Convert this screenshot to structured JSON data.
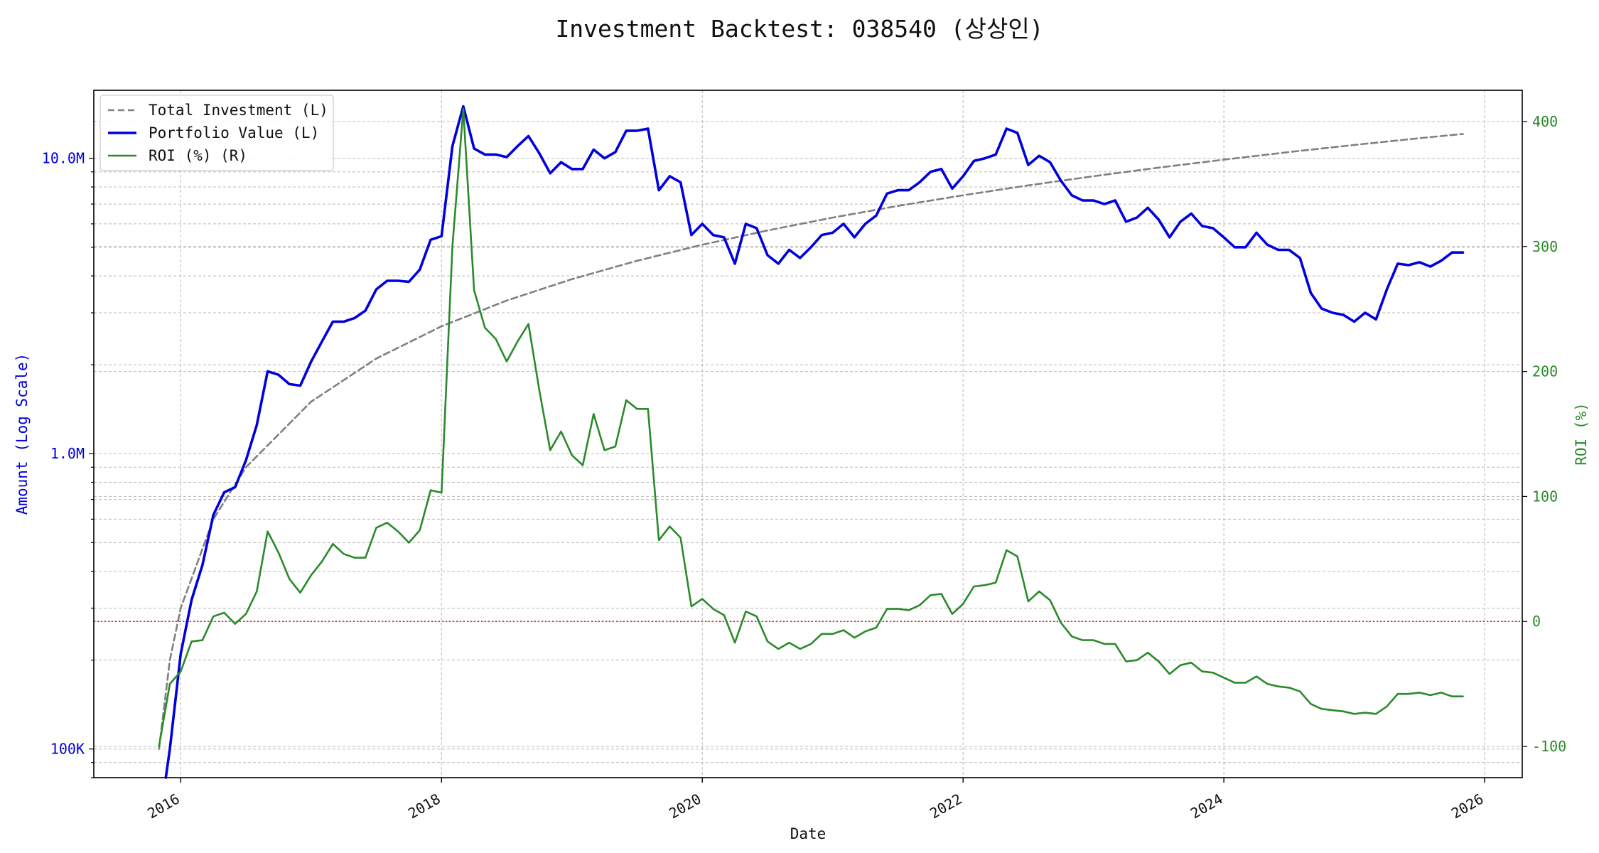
{
  "title": "Investment Backtest: 038540 (상상인)",
  "colors": {
    "investment": "#808080",
    "portfolio": "#0000dd",
    "roi": "#2a8a2a",
    "zero_line": "#dd2222",
    "grid": "#b8b8b8"
  },
  "chart_data": {
    "type": "line",
    "title": "Investment Backtest: 038540 (상상인)",
    "xlabel": "Date",
    "ylabel_left": "Amount (Log Scale)",
    "ylabel_right": "ROI (%)",
    "x_ticks": [
      "2016",
      "2018",
      "2020",
      "2022",
      "2024",
      "2026"
    ],
    "y_left_ticks": [
      "100K",
      "1.0M",
      "10.0M"
    ],
    "y_right_ticks": [
      "-100",
      "0",
      "100",
      "200",
      "300",
      "400"
    ],
    "y_left_scale": "log",
    "y_left_range": [
      80000,
      17000000
    ],
    "y_right_range": [
      -125,
      425
    ],
    "x_range": [
      "2015-05-01",
      "2026-04-15"
    ],
    "grid": true,
    "legend_position": "top-left",
    "roi_reference_line": 0,
    "legend": [
      "Total Investment (L)",
      "Portfolio Value (L)",
      "ROI (%) (R)"
    ],
    "series": [
      {
        "name": "Total Investment (L)",
        "axis": "left",
        "style": "dashed",
        "x": [
          "2015-11-01",
          "2015-12-01",
          "2016-01-01",
          "2016-04-01",
          "2016-07-01",
          "2017-01-01",
          "2017-07-01",
          "2018-01-01",
          "2018-07-01",
          "2019-01-01",
          "2019-07-01",
          "2020-01-01",
          "2020-07-01",
          "2021-01-01",
          "2021-07-01",
          "2022-01-01",
          "2022-07-01",
          "2023-01-01",
          "2023-07-01",
          "2024-01-01",
          "2024-07-01",
          "2025-01-01",
          "2025-07-01",
          "2025-11-01"
        ],
        "values": [
          100000,
          200000,
          300000,
          600000,
          900000,
          1500000,
          2100000,
          2700000,
          3300000,
          3900000,
          4500000,
          5100000,
          5700000,
          6300000,
          6900000,
          7500000,
          8100000,
          8700000,
          9300000,
          9900000,
          10500000,
          11100000,
          11700000,
          12100000
        ]
      },
      {
        "name": "Portfolio Value (L)",
        "axis": "left",
        "style": "solid",
        "x": [
          "2015-11-20",
          "2015-12-01",
          "2016-01-01",
          "2016-02-01",
          "2016-03-01",
          "2016-04-01",
          "2016-05-01",
          "2016-06-01",
          "2016-07-01",
          "2016-08-01",
          "2016-09-01",
          "2016-10-01",
          "2016-11-01",
          "2016-12-01",
          "2017-01-01",
          "2017-02-01",
          "2017-03-01",
          "2017-04-01",
          "2017-05-01",
          "2017-06-01",
          "2017-07-01",
          "2017-08-01",
          "2017-09-01",
          "2017-10-01",
          "2017-11-01",
          "2017-12-01",
          "2018-01-01",
          "2018-02-01",
          "2018-03-01",
          "2018-04-01",
          "2018-05-01",
          "2018-06-01",
          "2018-07-01",
          "2018-08-01",
          "2018-09-01",
          "2018-10-01",
          "2018-11-01",
          "2018-12-01",
          "2019-01-01",
          "2019-02-01",
          "2019-03-01",
          "2019-04-01",
          "2019-05-01",
          "2019-06-01",
          "2019-07-01",
          "2019-08-01",
          "2019-09-01",
          "2019-10-01",
          "2019-11-01",
          "2019-12-01",
          "2020-01-01",
          "2020-02-01",
          "2020-03-01",
          "2020-04-01",
          "2020-05-01",
          "2020-06-01",
          "2020-07-01",
          "2020-08-01",
          "2020-09-01",
          "2020-10-01",
          "2020-11-01",
          "2020-12-01",
          "2021-01-01",
          "2021-02-01",
          "2021-03-01",
          "2021-04-01",
          "2021-05-01",
          "2021-06-01",
          "2021-07-01",
          "2021-08-01",
          "2021-09-01",
          "2021-10-01",
          "2021-11-01",
          "2021-12-01",
          "2022-01-01",
          "2022-02-01",
          "2022-03-01",
          "2022-04-01",
          "2022-05-01",
          "2022-06-01",
          "2022-07-01",
          "2022-08-01",
          "2022-09-01",
          "2022-10-01",
          "2022-11-01",
          "2022-12-01",
          "2023-01-01",
          "2023-02-01",
          "2023-03-01",
          "2023-04-01",
          "2023-05-01",
          "2023-06-01",
          "2023-07-01",
          "2023-08-01",
          "2023-09-01",
          "2023-10-01",
          "2023-11-01",
          "2023-12-01",
          "2024-01-01",
          "2024-02-01",
          "2024-03-01",
          "2024-04-01",
          "2024-05-01",
          "2024-06-01",
          "2024-07-01",
          "2024-08-01",
          "2024-09-01",
          "2024-10-01",
          "2024-11-01",
          "2024-12-01",
          "2025-01-01",
          "2025-02-01",
          "2025-03-01",
          "2025-04-01",
          "2025-05-01",
          "2025-06-01",
          "2025-07-01",
          "2025-08-01",
          "2025-09-01",
          "2025-10-01",
          "2025-11-01"
        ],
        "values": [
          75000,
          100000,
          210000,
          320000,
          420000,
          620000,
          740000,
          770000,
          950000,
          1250000,
          1900000,
          1850000,
          1720000,
          1700000,
          2050000,
          2400000,
          2800000,
          2800000,
          2880000,
          3050000,
          3600000,
          3850000,
          3850000,
          3820000,
          4200000,
          5300000,
          5450000,
          11000000,
          15000000,
          10800000,
          10300000,
          10300000,
          10100000,
          11000000,
          11900000,
          10400000,
          8900000,
          9700000,
          9200000,
          9200000,
          10700000,
          10000000,
          10500000,
          12400000,
          12400000,
          12600000,
          7800000,
          8700000,
          8300000,
          5500000,
          6000000,
          5500000,
          5400000,
          4400000,
          6000000,
          5800000,
          4700000,
          4400000,
          4900000,
          4600000,
          5000000,
          5500000,
          5600000,
          6000000,
          5400000,
          6000000,
          6400000,
          7600000,
          7800000,
          7800000,
          8300000,
          9000000,
          9200000,
          7900000,
          8700000,
          9800000,
          10000000,
          10300000,
          12600000,
          12200000,
          9500000,
          10200000,
          9700000,
          8400000,
          7500000,
          7200000,
          7200000,
          7000000,
          7200000,
          6100000,
          6300000,
          6800000,
          6200000,
          5400000,
          6100000,
          6500000,
          5900000,
          5800000,
          5400000,
          5000000,
          5000000,
          5600000,
          5100000,
          4900000,
          4900000,
          4600000,
          3500000,
          3100000,
          3000000,
          2950000,
          2800000,
          3000000,
          2850000,
          3600000,
          4400000,
          4350000,
          4450000,
          4300000,
          4500000,
          4800000,
          4800000
        ]
      },
      {
        "name": "ROI (%) (R)",
        "axis": "right",
        "style": "solid",
        "x": [
          "2015-11-01",
          "2015-12-01",
          "2016-01-01",
          "2016-02-01",
          "2016-03-01",
          "2016-04-01",
          "2016-05-01",
          "2016-06-01",
          "2016-07-01",
          "2016-08-01",
          "2016-09-01",
          "2016-10-01",
          "2016-11-01",
          "2016-12-01",
          "2017-01-01",
          "2017-02-01",
          "2017-03-01",
          "2017-04-01",
          "2017-05-01",
          "2017-06-01",
          "2017-07-01",
          "2017-08-01",
          "2017-09-01",
          "2017-10-01",
          "2017-11-01",
          "2017-12-01",
          "2018-01-01",
          "2018-02-01",
          "2018-03-01",
          "2018-04-01",
          "2018-05-01",
          "2018-06-01",
          "2018-07-01",
          "2018-08-01",
          "2018-09-01",
          "2018-10-01",
          "2018-11-01",
          "2018-12-01",
          "2019-01-01",
          "2019-02-01",
          "2019-03-01",
          "2019-04-01",
          "2019-05-01",
          "2019-06-01",
          "2019-07-01",
          "2019-08-01",
          "2019-09-01",
          "2019-10-01",
          "2019-11-01",
          "2019-12-01",
          "2020-01-01",
          "2020-02-01",
          "2020-03-01",
          "2020-04-01",
          "2020-05-01",
          "2020-06-01",
          "2020-07-01",
          "2020-08-01",
          "2020-09-01",
          "2020-10-01",
          "2020-11-01",
          "2020-12-01",
          "2021-01-01",
          "2021-02-01",
          "2021-03-01",
          "2021-04-01",
          "2021-05-01",
          "2021-06-01",
          "2021-07-01",
          "2021-08-01",
          "2021-09-01",
          "2021-10-01",
          "2021-11-01",
          "2021-12-01",
          "2022-01-01",
          "2022-02-01",
          "2022-03-01",
          "2022-04-01",
          "2022-05-01",
          "2022-06-01",
          "2022-07-01",
          "2022-08-01",
          "2022-09-01",
          "2022-10-01",
          "2022-11-01",
          "2022-12-01",
          "2023-01-01",
          "2023-02-01",
          "2023-03-01",
          "2023-04-01",
          "2023-05-01",
          "2023-06-01",
          "2023-07-01",
          "2023-08-01",
          "2023-09-01",
          "2023-10-01",
          "2023-11-01",
          "2023-12-01",
          "2024-01-01",
          "2024-02-01",
          "2024-03-01",
          "2024-04-01",
          "2024-05-01",
          "2024-06-01",
          "2024-07-01",
          "2024-08-01",
          "2024-09-01",
          "2024-10-01",
          "2024-11-01",
          "2024-12-01",
          "2025-01-01",
          "2025-02-01",
          "2025-03-01",
          "2025-04-01",
          "2025-05-01",
          "2025-06-01",
          "2025-07-01",
          "2025-08-01",
          "2025-09-01",
          "2025-10-01",
          "2025-11-01"
        ],
        "values": [
          -100,
          -50,
          -40,
          -16,
          -15,
          4,
          7,
          -2,
          6,
          24,
          72,
          55,
          34,
          23,
          37,
          48,
          62,
          54,
          51,
          51,
          75,
          79,
          72,
          63,
          73,
          105,
          103,
          300,
          410,
          265,
          235,
          226,
          208,
          224,
          238,
          185,
          137,
          152,
          133,
          125,
          166,
          137,
          140,
          177,
          170,
          170,
          65,
          76,
          67,
          12,
          18,
          10,
          5,
          -17,
          8,
          4,
          -16,
          -22,
          -17,
          -22,
          -18,
          -10,
          -10,
          -7,
          -13,
          -8,
          -5,
          10,
          10,
          9,
          13,
          21,
          22,
          6,
          14,
          28,
          29,
          31,
          57,
          52,
          16,
          24,
          17,
          -1,
          -12,
          -15,
          -15,
          -18,
          -18,
          -32,
          -31,
          -25,
          -32,
          -42,
          -35,
          -33,
          -40,
          -41,
          -45,
          -49,
          -49,
          -44,
          -50,
          -52,
          -53,
          -56,
          -66,
          -70,
          -71,
          -72,
          -74,
          -73,
          -74,
          -68,
          -58,
          -58,
          -57,
          -59,
          -57,
          -60,
          -60
        ]
      }
    ]
  }
}
